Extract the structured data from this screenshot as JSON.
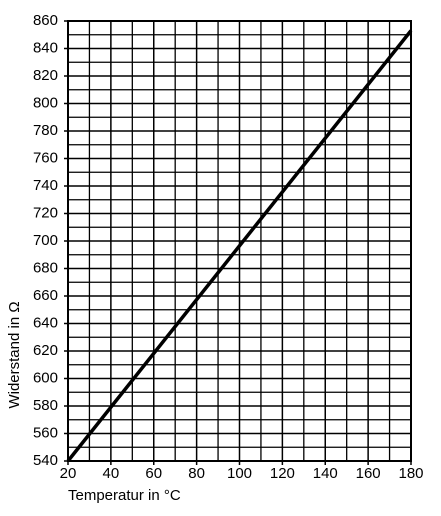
{
  "chart_data": {
    "type": "line",
    "xlabel": "Temperatur in °C",
    "ylabel": "Widerstand in Ω",
    "x": [
      20,
      180
    ],
    "series": [
      {
        "color": "#000000",
        "values": [
          540,
          853
        ]
      }
    ],
    "xlim": [
      20,
      180
    ],
    "xticks": [
      20,
      40,
      60,
      80,
      100,
      120,
      140,
      160,
      180
    ],
    "ylim": [
      540,
      860
    ],
    "yticks": [
      540,
      560,
      580,
      600,
      620,
      640,
      660,
      680,
      700,
      720,
      740,
      760,
      780,
      800,
      820,
      840,
      860
    ],
    "grid": true,
    "minor_grid": true
  }
}
